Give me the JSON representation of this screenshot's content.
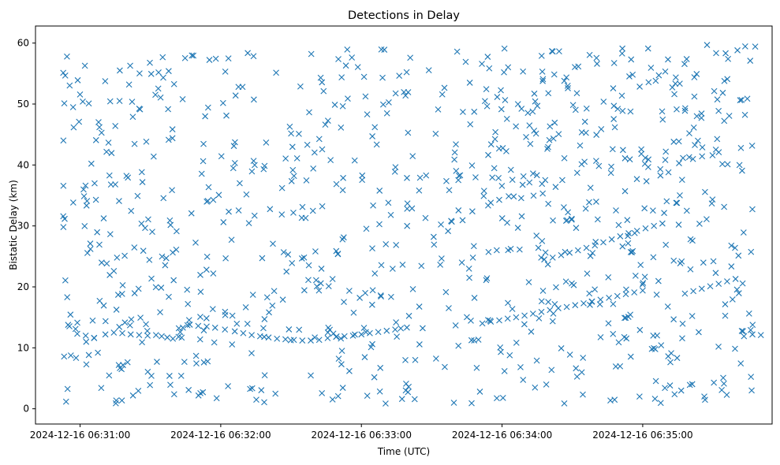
{
  "chart_data": {
    "type": "scatter",
    "title": "Detections in Delay",
    "xlabel": "Time (UTC)",
    "ylabel": "Bistatic Delay (km)",
    "x_unit": "minute-of-day",
    "xlim": [
      390.683,
      395.92
    ],
    "ylim": [
      -2.5,
      62.8
    ],
    "x_ticks": [
      391,
      392,
      393,
      394,
      395
    ],
    "x_tick_labels": [
      "2024-12-16 06:31:00",
      "2024-12-16 06:32:00",
      "2024-12-16 06:33:00",
      "2024-12-16 06:34:00",
      "2024-12-16 06:35:00"
    ],
    "y_ticks": [
      0,
      10,
      20,
      30,
      40,
      50,
      60
    ],
    "y_tick_labels": [
      "0",
      "10",
      "20",
      "30",
      "40",
      "50",
      "60"
    ],
    "grid": false,
    "marker": "x",
    "color": "#1f77b4",
    "series": [
      {
        "track_points": [
          [
            390.98,
            12.3
          ],
          [
            391.04,
            12.0
          ],
          [
            391.1,
            11.6
          ],
          [
            391.18,
            12.2
          ],
          [
            391.24,
            12.5
          ],
          [
            391.3,
            12.4
          ],
          [
            391.36,
            12.2
          ],
          [
            391.42,
            12.1
          ],
          [
            391.48,
            12.0
          ],
          [
            391.54,
            12.1
          ],
          [
            391.58,
            11.9
          ],
          [
            391.62,
            11.7
          ],
          [
            391.66,
            11.5
          ],
          [
            391.7,
            11.8
          ],
          [
            391.78,
            13.8
          ],
          [
            391.84,
            13.6
          ],
          [
            391.9,
            13.5
          ],
          [
            391.96,
            13.3
          ],
          [
            392.03,
            13.0
          ],
          [
            392.1,
            12.7
          ],
          [
            392.16,
            12.4
          ],
          [
            392.22,
            12.1
          ],
          [
            392.28,
            11.9
          ],
          [
            392.34,
            11.7
          ],
          [
            392.4,
            11.5
          ],
          [
            392.46,
            11.4
          ],
          [
            392.52,
            11.3
          ],
          [
            392.58,
            11.2
          ],
          [
            392.64,
            11.2
          ],
          [
            392.7,
            11.3
          ],
          [
            392.76,
            11.6
          ],
          [
            392.82,
            11.8
          ],
          [
            392.88,
            11.9
          ],
          [
            392.94,
            12.0
          ],
          [
            393.0,
            12.2
          ],
          [
            393.06,
            12.4
          ],
          [
            393.12,
            12.6
          ],
          [
            393.18,
            12.8
          ],
          [
            393.24,
            13.0
          ],
          [
            393.28,
            13.2
          ],
          [
            393.86,
            14.0
          ],
          [
            393.92,
            14.3
          ],
          [
            393.98,
            14.5
          ],
          [
            394.04,
            14.8
          ],
          [
            394.1,
            15.0
          ],
          [
            394.16,
            15.3
          ],
          [
            394.22,
            15.6
          ],
          [
            394.28,
            15.9
          ],
          [
            394.34,
            16.2
          ],
          [
            394.4,
            16.5
          ],
          [
            394.46,
            16.7
          ],
          [
            394.52,
            17.0
          ],
          [
            394.58,
            17.3
          ],
          [
            394.64,
            17.6
          ],
          [
            394.7,
            17.9
          ],
          [
            394.76,
            18.2
          ],
          [
            394.82,
            18.5
          ],
          [
            394.88,
            18.8
          ],
          [
            394.94,
            19.1
          ],
          [
            395.0,
            19.4
          ],
          [
            394.3,
            24.5
          ],
          [
            394.36,
            24.8
          ],
          [
            394.42,
            25.2
          ],
          [
            394.48,
            25.6
          ],
          [
            394.54,
            26.0
          ],
          [
            394.6,
            26.4
          ],
          [
            394.66,
            26.8
          ],
          [
            394.72,
            27.3
          ],
          [
            394.78,
            27.8
          ],
          [
            394.84,
            28.3
          ],
          [
            394.9,
            28.8
          ],
          [
            394.96,
            29.2
          ],
          [
            395.02,
            29.6
          ],
          [
            395.08,
            30.0
          ],
          [
            395.14,
            30.4
          ],
          [
            395.3,
            18.9
          ],
          [
            395.36,
            19.3
          ],
          [
            395.42,
            19.7
          ],
          [
            395.48,
            20.1
          ],
          [
            395.54,
            20.5
          ],
          [
            395.6,
            20.9
          ],
          [
            395.66,
            21.3
          ],
          [
            395.72,
            11.9
          ],
          [
            395.78,
            12.2
          ],
          [
            395.84,
            12.1
          ]
        ]
      }
    ]
  }
}
